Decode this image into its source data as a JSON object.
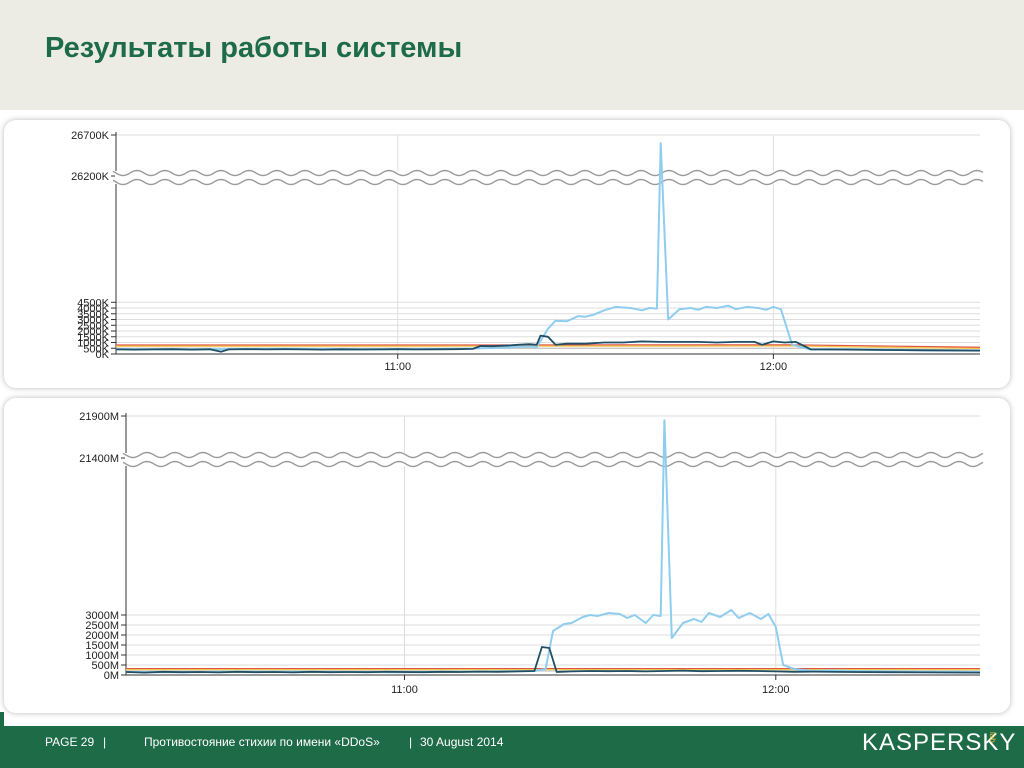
{
  "slide": {
    "title": "Результаты работы системы"
  },
  "footer": {
    "page": "PAGE 29",
    "sep1": "|",
    "topic": "Противостояние стихии по имени «DDoS»",
    "sep2": "|",
    "date": "30 August 2014",
    "logo_text": "KASPERSKY",
    "logo_sub": "lab"
  },
  "colors": {
    "accent": "#1e6b47",
    "header_bg": "#ecece4",
    "series_total": "#8fcdef",
    "series_dark": "#1f4e66",
    "threshold_red": "#e05545",
    "threshold_yellow": "#f0c850",
    "threshold_gray": "#c8c8c8"
  },
  "chart_data": [
    {
      "type": "line",
      "title": "",
      "xlabel": "",
      "ylabel": "",
      "x_ticks": [
        "11:00",
        "12:00"
      ],
      "x_ticks_at": [
        11.0,
        12.0
      ],
      "x_range": [
        10.25,
        12.55
      ],
      "y_ticks": [
        "0K",
        "500K",
        "1000K",
        "1500K",
        "2000K",
        "2500K",
        "3000K",
        "3500K",
        "4000K",
        "4500K",
        "26200K",
        "26700K"
      ],
      "y_tick_values": [
        0,
        500,
        1000,
        1500,
        2000,
        2500,
        3000,
        3500,
        4000,
        4500,
        26200,
        26700
      ],
      "y_unit": "K",
      "y_break": [
        4700,
        26200
      ],
      "grid": true,
      "series": [
        {
          "role": "total",
          "x": [
            10.25,
            10.4,
            10.55,
            10.7,
            10.85,
            11.0,
            11.1,
            11.2,
            11.3,
            11.35,
            11.37,
            11.4,
            11.42,
            11.45,
            11.48,
            11.5,
            11.52,
            11.55,
            11.58,
            11.6,
            11.62,
            11.65,
            11.67,
            11.69,
            11.7,
            11.72,
            11.75,
            11.78,
            11.8,
            11.82,
            11.85,
            11.88,
            11.9,
            11.93,
            11.96,
            11.98,
            12.0,
            12.02,
            12.05,
            12.1,
            12.15,
            12.2,
            12.3,
            12.4,
            12.55
          ],
          "y": [
            420,
            400,
            430,
            450,
            410,
            420,
            430,
            480,
            580,
            650,
            600,
            2200,
            2900,
            2850,
            3300,
            3250,
            3400,
            3800,
            4100,
            4050,
            4000,
            3800,
            4000,
            3950,
            26600,
            3000,
            3900,
            4000,
            3850,
            4100,
            4000,
            4200,
            3900,
            4100,
            4000,
            3850,
            4100,
            3900,
            800,
            380,
            420,
            400,
            360,
            330,
            300
          ]
        },
        {
          "role": "dark",
          "x": [
            10.25,
            10.3,
            10.35,
            10.4,
            10.45,
            10.5,
            10.53,
            10.55,
            10.6,
            10.65,
            10.7,
            10.75,
            10.8,
            10.85,
            10.9,
            10.95,
            11.0,
            11.05,
            11.1,
            11.15,
            11.2,
            11.22,
            11.25,
            11.28,
            11.3,
            11.32,
            11.35,
            11.37,
            11.38,
            11.4,
            11.42,
            11.45,
            11.5,
            11.55,
            11.6,
            11.65,
            11.7,
            11.75,
            11.8,
            11.85,
            11.9,
            11.95,
            11.97,
            12.0,
            12.03,
            12.06,
            12.1,
            12.2,
            12.3,
            12.4,
            12.55
          ],
          "y": [
            400,
            380,
            400,
            420,
            380,
            410,
            200,
            400,
            430,
            400,
            420,
            400,
            380,
            410,
            390,
            400,
            420,
            400,
            410,
            420,
            440,
            700,
            680,
            720,
            750,
            800,
            850,
            800,
            1600,
            1500,
            800,
            900,
            900,
            1000,
            1000,
            1100,
            1050,
            1050,
            1050,
            1000,
            1050,
            1050,
            800,
            1100,
            1000,
            1050,
            400,
            380,
            350,
            320,
            300
          ]
        }
      ],
      "thresholds": [
        {
          "color": "red",
          "x": [
            10.25,
            11.0,
            12.05,
            12.55
          ],
          "y": [
            780,
            780,
            790,
            580
          ]
        },
        {
          "color": "yellow",
          "x": [
            10.25,
            11.0,
            12.05,
            12.55
          ],
          "y": [
            680,
            680,
            700,
            480
          ]
        },
        {
          "color": "gray",
          "x": [
            10.25,
            11.0,
            12.05,
            12.55
          ],
          "y": [
            500,
            500,
            500,
            350
          ]
        }
      ]
    },
    {
      "type": "line",
      "title": "",
      "xlabel": "",
      "ylabel": "",
      "x_ticks": [
        "11:00",
        "12:00"
      ],
      "x_ticks_at": [
        11.0,
        12.0
      ],
      "x_range": [
        10.25,
        12.55
      ],
      "y_ticks": [
        "0M",
        "500M",
        "1000M",
        "1500M",
        "2000M",
        "2500M",
        "3000M",
        "21400M",
        "21900M"
      ],
      "y_tick_values": [
        0,
        500,
        1000,
        1500,
        2000,
        2500,
        3000,
        21400,
        21900
      ],
      "y_unit": "M",
      "y_break": [
        3250,
        21400
      ],
      "grid": true,
      "series": [
        {
          "role": "total",
          "x": [
            10.25,
            10.4,
            10.55,
            10.7,
            10.85,
            11.0,
            11.1,
            11.2,
            11.3,
            11.35,
            11.38,
            11.4,
            11.43,
            11.45,
            11.48,
            11.5,
            11.52,
            11.55,
            11.58,
            11.6,
            11.62,
            11.65,
            11.67,
            11.69,
            11.7,
            11.72,
            11.75,
            11.78,
            11.8,
            11.82,
            11.85,
            11.88,
            11.9,
            11.93,
            11.96,
            11.98,
            12.0,
            12.02,
            12.05,
            12.1,
            12.15,
            12.2,
            12.3,
            12.4,
            12.55
          ],
          "y": [
            150,
            140,
            170,
            160,
            150,
            140,
            160,
            170,
            180,
            200,
            300,
            2200,
            2550,
            2600,
            2900,
            3000,
            2950,
            3100,
            3050,
            2850,
            3000,
            2600,
            3000,
            2950,
            21850,
            1850,
            2600,
            2800,
            2650,
            3100,
            2900,
            3250,
            2850,
            3100,
            2800,
            3050,
            2400,
            500,
            300,
            200,
            230,
            200,
            180,
            160,
            150
          ]
        },
        {
          "role": "dark",
          "x": [
            10.25,
            10.3,
            10.35,
            10.4,
            10.45,
            10.5,
            10.55,
            10.6,
            10.65,
            10.7,
            10.75,
            10.8,
            10.85,
            10.9,
            10.95,
            11.0,
            11.05,
            11.1,
            11.15,
            11.2,
            11.25,
            11.3,
            11.35,
            11.37,
            11.39,
            11.41,
            11.42,
            11.45,
            11.5,
            11.55,
            11.6,
            11.65,
            11.7,
            11.75,
            11.8,
            11.85,
            11.9,
            11.95,
            12.0,
            12.05,
            12.1,
            12.2,
            12.3,
            12.4,
            12.55
          ],
          "y": [
            150,
            120,
            160,
            140,
            150,
            130,
            160,
            140,
            150,
            130,
            160,
            140,
            150,
            140,
            160,
            150,
            140,
            160,
            150,
            170,
            160,
            180,
            200,
            1400,
            1350,
            150,
            160,
            180,
            200,
            190,
            200,
            180,
            200,
            220,
            190,
            200,
            210,
            200,
            180,
            160,
            170,
            150,
            140,
            130,
            120
          ]
        }
      ],
      "thresholds": [
        {
          "color": "red",
          "x": [
            10.25,
            12.55
          ],
          "y": [
            320,
            320
          ]
        },
        {
          "color": "yellow",
          "x": [
            10.25,
            12.55
          ],
          "y": [
            270,
            270
          ]
        },
        {
          "color": "gray",
          "x": [
            10.25,
            12.55
          ],
          "y": [
            200,
            200
          ]
        }
      ]
    }
  ]
}
